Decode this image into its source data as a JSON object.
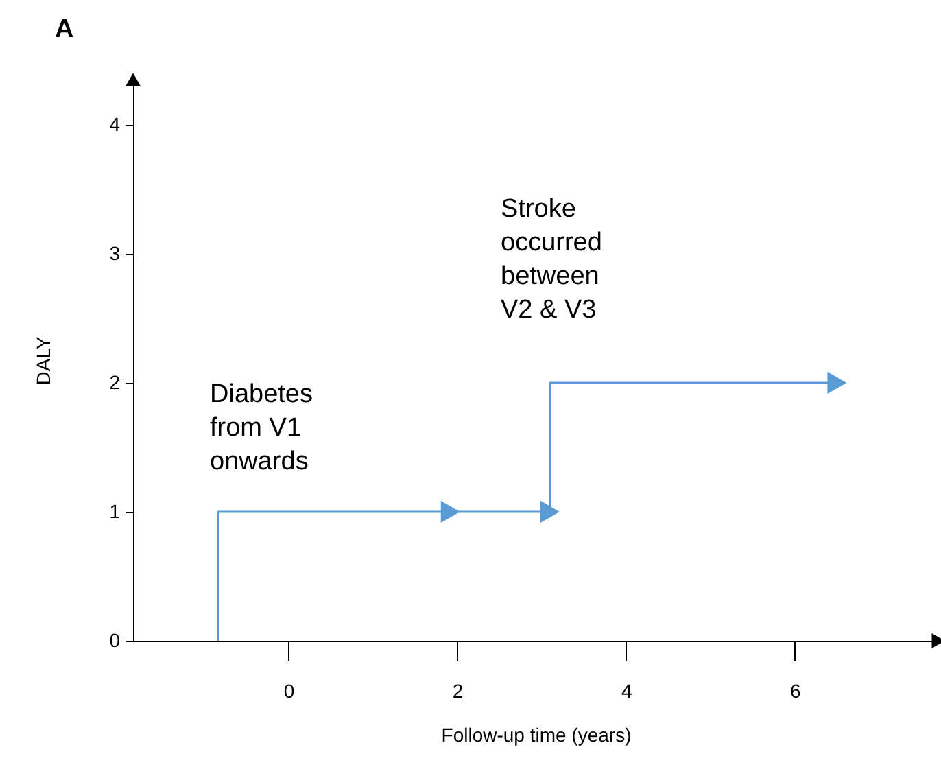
{
  "chart_data": {
    "type": "step",
    "title": "A",
    "xlabel": "Follow-up time (years)",
    "ylabel": "DALY",
    "xlim": [
      -1.84,
      7.7
    ],
    "xticks": [
      0,
      2,
      4,
      6
    ],
    "ylim": [
      0,
      4.35
    ],
    "yticks": [
      0,
      1,
      2,
      3,
      4
    ],
    "grid": false,
    "line_style": "solid",
    "series": [
      {
        "color": "#5b9bd5",
        "x": [
          -0.83,
          -0.83,
          3.1,
          6.5
        ],
        "values": [
          0,
          1,
          2,
          2
        ],
        "marker": "none"
      },
      {
        "type": "scatter",
        "color": "#5b9bd5",
        "x": [
          1.92,
          3.1,
          6.5
        ],
        "values": [
          1,
          1,
          2
        ],
        "marker": "triangle"
      }
    ],
    "annotations": [
      "Diabetes\nfrom V1\nonwards",
      "Stroke\noccurred\nbetween\nV2 & V3"
    ]
  }
}
